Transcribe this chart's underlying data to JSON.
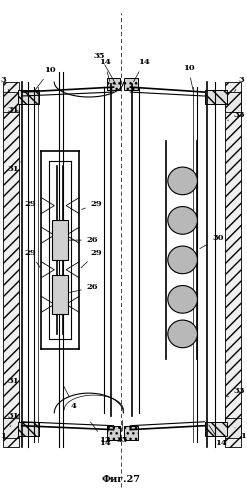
{
  "title": "Фиг.27",
  "bg_color": "#ffffff",
  "fig_width": 2.47,
  "fig_height": 5.0,
  "dpi": 100
}
